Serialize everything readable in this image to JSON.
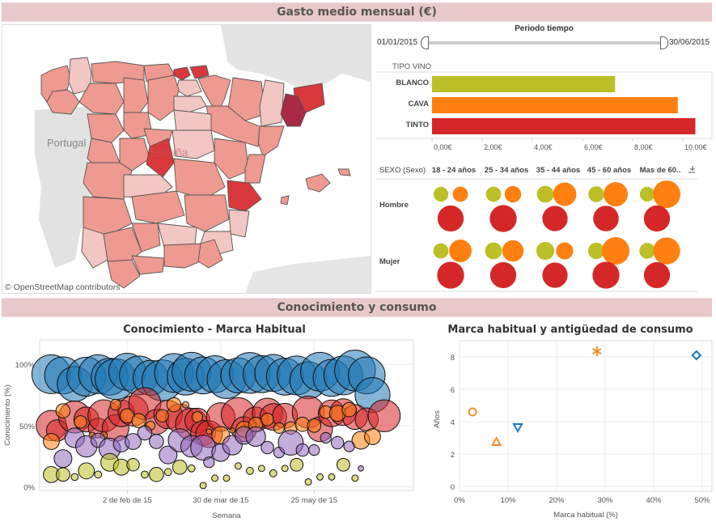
{
  "sections": {
    "top_title": "Gasto medio mensual (€)",
    "bottom_title": "Conocimiento y  consumo"
  },
  "map": {
    "country_label": "España",
    "neighbor_label": "Portugal",
    "credit": "© OpenStreetMap contributors",
    "colors": {
      "low": "#f2c6c2",
      "mid": "#ee9a90",
      "high": "#d8383c",
      "max": "#a82a45"
    }
  },
  "period_filter": {
    "title": "Periodo tiempo",
    "start": "01/01/2015",
    "end": "30/06/2015"
  },
  "chart_data": [
    {
      "id": "wine_bar",
      "type": "bar",
      "orientation": "horizontal",
      "title": "TIPO VINO",
      "categories": [
        "BLANCO",
        "CAVA",
        "TINTO"
      ],
      "values": [
        7.3,
        9.8,
        10.5
      ],
      "colors": [
        "#bcbf27",
        "#ff8010",
        "#d62728"
      ],
      "xticks": [
        "0,00€",
        "2,00€",
        "4,00€",
        "6,00€",
        "8,00€",
        "10,00€"
      ],
      "xlim": [
        0,
        11
      ]
    },
    {
      "id": "sex_age_bubbles",
      "type": "scatter",
      "title": "SEXO (Sexo)",
      "columns": [
        "18 - 24 años",
        "25 - 34 años",
        "35 - 44 años",
        "45 - 60 años",
        "Mas de 60.."
      ],
      "rows": [
        "Hombre",
        "Mujer"
      ],
      "series_names": [
        "BLANCO",
        "CAVA",
        "TINTO"
      ],
      "series_colors": [
        "#bcbf27",
        "#ff8010",
        "#d62728"
      ],
      "sizes": {
        "Hombre": [
          [
            0.7,
            0.55,
            0.95
          ],
          [
            0.72,
            0.6,
            0.98
          ],
          [
            0.8,
            0.85,
            0.92
          ],
          [
            0.75,
            0.88,
            0.93
          ],
          [
            0.7,
            1.0,
            0.95
          ]
        ],
        "Mujer": [
          [
            0.72,
            0.82,
            0.98
          ],
          [
            0.8,
            0.78,
            0.95
          ],
          [
            0.85,
            0.62,
            0.92
          ],
          [
            0.78,
            1.0,
            0.98
          ],
          [
            0.75,
            0.98,
            0.95
          ]
        ]
      }
    },
    {
      "id": "knowledge_bubbles",
      "type": "scatter",
      "title": "Conocimiento - Marca Habitual",
      "xlabel": "Semana",
      "ylabel": "Conocimiento (%)",
      "xticks": [
        {
          "label": "2 de feb de 15",
          "week": 5
        },
        {
          "label": "30 de mar de 15",
          "week": 13
        },
        {
          "label": "25 may de 15",
          "week": 21
        }
      ],
      "yticks": [
        "0%",
        "50%",
        "100%"
      ],
      "ylim": [
        -3,
        120
      ],
      "xlim": [
        -2.5,
        29.5
      ],
      "series": [
        {
          "name": "blue",
          "color": "#1f77b4",
          "points": [
            [
              -1.5,
              92,
              1.0
            ],
            [
              -0.5,
              91,
              0.95
            ],
            [
              0.5,
              84,
              0.9
            ],
            [
              1.5,
              90,
              1.0
            ],
            [
              2.5,
              92,
              1.0
            ],
            [
              3.5,
              90,
              0.95
            ],
            [
              4,
              88,
              1.05
            ],
            [
              5,
              94,
              0.95
            ],
            [
              6,
              91,
              1.0
            ],
            [
              7,
              89,
              0.9
            ],
            [
              8,
              87,
              1.05
            ],
            [
              9,
              93,
              1.0
            ],
            [
              10,
              90,
              0.95
            ],
            [
              10.5,
              94,
              1.0
            ],
            [
              11.5,
              91,
              0.95
            ],
            [
              12.5,
              92,
              0.95
            ],
            [
              13.5,
              88,
              1.0
            ],
            [
              14.5,
              91,
              0.9
            ],
            [
              15.5,
              93,
              1.05
            ],
            [
              16.5,
              92,
              0.95
            ],
            [
              17.5,
              93,
              0.95
            ],
            [
              18.5,
              90,
              0.95
            ],
            [
              19.5,
              91,
              1.0
            ],
            [
              20.5,
              87,
              0.95
            ],
            [
              21.5,
              94,
              1.0
            ],
            [
              22.5,
              89,
              0.95
            ],
            [
              23.5,
              91,
              1.0
            ],
            [
              24.5,
              95,
              1.05
            ],
            [
              25.5,
              91,
              0.95
            ],
            [
              26,
              75,
              0.9
            ]
          ]
        },
        {
          "name": "red",
          "color": "#d62728",
          "points": [
            [
              -1.5,
              50,
              0.85
            ],
            [
              -1,
              46,
              0.6
            ],
            [
              0.5,
              57,
              0.9
            ],
            [
              1.5,
              55,
              0.7
            ],
            [
              2.5,
              48,
              0.55
            ],
            [
              3,
              58,
              0.9
            ],
            [
              4,
              48,
              0.75
            ],
            [
              4.5,
              60,
              0.75
            ],
            [
              5.5,
              62,
              0.85
            ],
            [
              6.5,
              68,
              0.9
            ],
            [
              7.5,
              53,
              0.7
            ],
            [
              8.5,
              59,
              0.8
            ],
            [
              9.5,
              56,
              0.8
            ],
            [
              10.5,
              51,
              0.9
            ],
            [
              11,
              54,
              0.7
            ],
            [
              11.5,
              44,
              0.7
            ],
            [
              12,
              43,
              0.75
            ],
            [
              13,
              57,
              0.8
            ],
            [
              14.5,
              59,
              0.95
            ],
            [
              15,
              47,
              0.7
            ],
            [
              16,
              55,
              0.7
            ],
            [
              17,
              60,
              0.85
            ],
            [
              17.5,
              57,
              0.75
            ],
            [
              18.5,
              58,
              0.7
            ],
            [
              20.5,
              61,
              0.9
            ],
            [
              21.5,
              47,
              0.7
            ],
            [
              22.5,
              60,
              0.75
            ],
            [
              23.5,
              61,
              0.75
            ],
            [
              24.5,
              57,
              0.7
            ],
            [
              25.5,
              55,
              0.65
            ],
            [
              27,
              58,
              0.9
            ]
          ]
        },
        {
          "name": "orange",
          "color": "#ff8010",
          "points": [
            [
              -1.5,
              37,
              0.45
            ],
            [
              -0.5,
              62,
              0.4
            ],
            [
              1,
              53,
              0.35
            ],
            [
              2,
              42,
              0.18
            ],
            [
              3,
              42,
              0.2
            ],
            [
              4,
              67,
              0.3
            ],
            [
              5,
              58,
              0.4
            ],
            [
              6,
              54,
              0.4
            ],
            [
              7,
              50,
              0.25
            ],
            [
              8,
              58,
              0.35
            ],
            [
              9,
              67,
              0.4
            ],
            [
              10,
              67,
              0.18
            ],
            [
              11,
              57,
              0.3
            ],
            [
              12,
              45,
              0.15
            ],
            [
              13,
              42,
              0.5
            ],
            [
              14,
              46,
              0.15
            ],
            [
              15,
              47,
              0.45
            ],
            [
              16,
              51,
              0.4
            ],
            [
              17,
              55,
              0.35
            ],
            [
              18,
              48,
              0.3
            ],
            [
              19,
              48,
              0.35
            ],
            [
              20,
              51,
              0.4
            ],
            [
              21,
              50,
              0.38
            ],
            [
              22,
              61,
              0.35
            ],
            [
              23,
              60,
              0.45
            ],
            [
              24,
              63,
              0.4
            ],
            [
              25,
              38,
              0.5
            ],
            [
              26,
              41,
              0.45
            ]
          ]
        },
        {
          "name": "purple",
          "color": "#9467bd",
          "points": [
            [
              -0.5,
              23,
              0.5
            ],
            [
              0.5,
              40,
              0.55
            ],
            [
              1.5,
              33,
              0.6
            ],
            [
              2.5,
              38,
              0.4
            ],
            [
              3.5,
              31,
              0.6
            ],
            [
              4.5,
              35,
              0.45
            ],
            [
              5.5,
              37,
              0.45
            ],
            [
              6.5,
              44,
              0.4
            ],
            [
              7.5,
              37,
              0.4
            ],
            [
              8.5,
              26,
              0.5
            ],
            [
              9.5,
              38,
              0.65
            ],
            [
              10.5,
              33,
              0.6
            ],
            [
              11.5,
              32,
              0.7
            ],
            [
              12,
              20,
              0.3
            ],
            [
              13,
              28,
              0.5
            ],
            [
              14,
              34,
              0.55
            ],
            [
              15,
              42,
              0.5
            ],
            [
              16,
              41,
              0.55
            ],
            [
              17,
              32,
              0.35
            ],
            [
              18,
              28,
              0.3
            ],
            [
              19,
              36,
              0.7
            ],
            [
              20,
              30,
              0.35
            ],
            [
              21,
              30,
              0.3
            ],
            [
              22,
              40,
              0.3
            ],
            [
              23,
              36,
              0.35
            ],
            [
              24,
              33,
              0.3
            ],
            [
              25,
              15,
              0.15
            ]
          ]
        },
        {
          "name": "yellow",
          "color": "#bcbd22",
          "points": [
            [
              -1.5,
              10,
              0.45
            ],
            [
              -0.5,
              10,
              0.38
            ],
            [
              0.5,
              8,
              0.2
            ],
            [
              1.5,
              13,
              0.45
            ],
            [
              2.5,
              10,
              0.2
            ],
            [
              3.5,
              20,
              0.5
            ],
            [
              4.5,
              16,
              0.45
            ],
            [
              5.5,
              18,
              0.35
            ],
            [
              6.5,
              10,
              0.2
            ],
            [
              7.5,
              10,
              0.4
            ],
            [
              8.5,
              12,
              0.2
            ],
            [
              9.5,
              16,
              0.4
            ],
            [
              10.5,
              15,
              0.2
            ],
            [
              11.5,
              1,
              0.18
            ],
            [
              12.5,
              7,
              0.18
            ],
            [
              13.5,
              7,
              0.18
            ],
            [
              14.5,
              17,
              0.18
            ],
            [
              15.5,
              13,
              0.2
            ],
            [
              16.5,
              15,
              0.18
            ],
            [
              17.5,
              11,
              0.2
            ],
            [
              18.5,
              15,
              0.18
            ],
            [
              19.5,
              18,
              0.36
            ],
            [
              20.5,
              4,
              0.18
            ],
            [
              21.5,
              8,
              0.18
            ],
            [
              22.5,
              8,
              0.18
            ],
            [
              23.5,
              18,
              0.36
            ],
            [
              24.5,
              7,
              0.18
            ]
          ]
        }
      ]
    },
    {
      "id": "brand_age_scatter",
      "type": "scatter",
      "title": "Marca habitual y antigüedad de consumo",
      "xlabel": "Marca habitual (%)",
      "ylabel": "Años",
      "xticks": [
        "0%",
        "10%",
        "20%",
        "30%",
        "40%",
        "50%"
      ],
      "yticks": [
        "0",
        "2",
        "4",
        "6",
        "8"
      ],
      "xlim": [
        0,
        52
      ],
      "ylim": [
        -0.3,
        9
      ],
      "points": [
        {
          "x": 2.7,
          "y": 4.6,
          "shape": "circle",
          "color": "#f28e2b"
        },
        {
          "x": 7.6,
          "y": 2.75,
          "shape": "triangle-up",
          "color": "#f28e2b"
        },
        {
          "x": 12.0,
          "y": 3.65,
          "shape": "triangle-down",
          "color": "#1f77b4"
        },
        {
          "x": 28.3,
          "y": 8.35,
          "shape": "asterisk",
          "color": "#f28e2b"
        },
        {
          "x": 48.8,
          "y": 8.1,
          "shape": "diamond",
          "color": "#1f77b4"
        }
      ]
    }
  ]
}
